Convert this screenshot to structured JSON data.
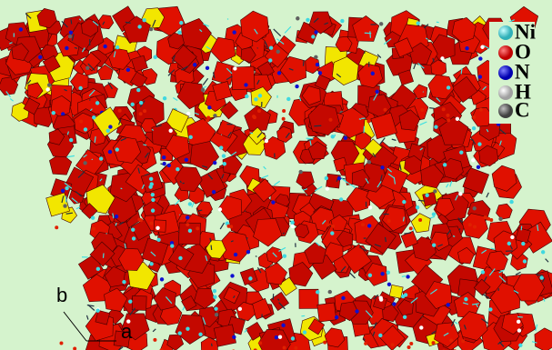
{
  "legend": [
    {
      "label": "Ni"
    },
    {
      "label": "O"
    },
    {
      "label": "N"
    },
    {
      "label": "H"
    },
    {
      "label": "C"
    }
  ],
  "axes": {
    "b": "b",
    "a": "a"
  }
}
